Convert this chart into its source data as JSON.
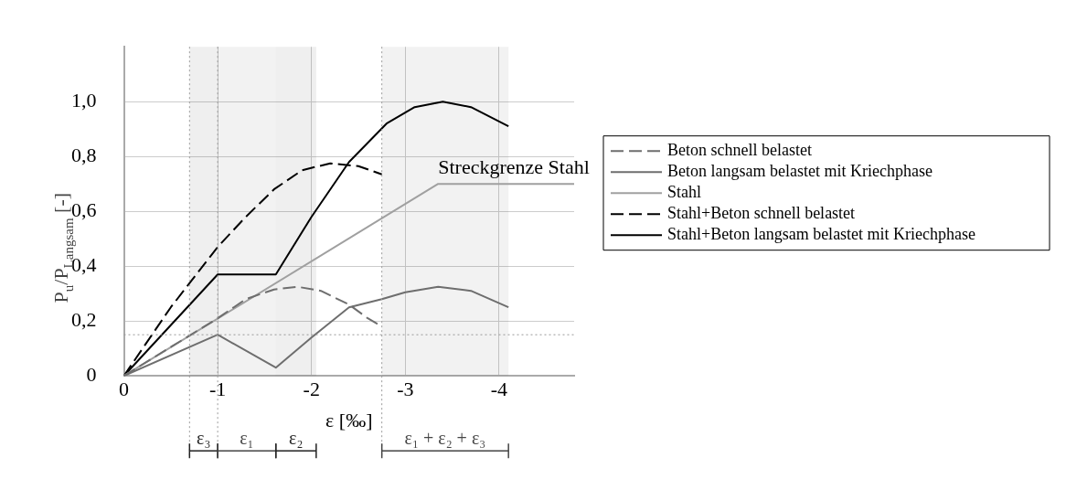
{
  "chart_data": {
    "type": "line",
    "xlabel": "ε [‰]",
    "ylabel": "P$_{u}$/P$_{Langsam}$ [-]",
    "xlim": [
      0,
      -4.8
    ],
    "xticks": [
      0,
      -1,
      -2,
      -3,
      -4
    ],
    "ylim": [
      0,
      1.2
    ],
    "yticks": [
      0,
      {
        "value": 0.2,
        "label": "0,2"
      },
      {
        "value": 0.4,
        "label": "0,4"
      },
      {
        "value": 0.6,
        "label": "0,6"
      },
      {
        "value": 0.8,
        "label": "0,8"
      },
      {
        "value": 1,
        "label": "1,0"
      }
    ],
    "grid": true,
    "legend": "right",
    "marker": "none",
    "series": [
      {
        "name": "Beton schnell belastet",
        "color": "#6e6e6e",
        "line_style": "dashed",
        "x": [
          0,
          -0.5,
          -1,
          -1.3,
          -1.6,
          -1.85,
          -2.1,
          -2.4,
          -2.6,
          -2.75
        ],
        "values": [
          0,
          0.105,
          0.21,
          0.28,
          0.315,
          0.325,
          0.31,
          0.26,
          0.21,
          0.18
        ]
      },
      {
        "name": "Beton langsam belastet mit Kriechphase",
        "color": "#6e6e6e",
        "line_style": "solid",
        "x": [
          0,
          -1,
          -1.62,
          -2,
          -2.4,
          -2.75,
          -3,
          -3.35,
          -3.7,
          -4.1
        ],
        "values": [
          0,
          0.15,
          0.03,
          0.14,
          0.25,
          0.28,
          0.305,
          0.325,
          0.31,
          0.25
        ]
      },
      {
        "name": "Stahl",
        "color": "#a0a0a0",
        "line_style": "solid",
        "x": [
          0,
          -3.35,
          -4.8
        ],
        "values": [
          0,
          0.7,
          0.7
        ]
      },
      {
        "name": "Stahl+Beton schnell belastet",
        "color": "#000000",
        "line_style": "dashed",
        "x": [
          0,
          -0.5,
          -1,
          -1.3,
          -1.6,
          -1.9,
          -2.2,
          -2.5,
          -2.75
        ],
        "values": [
          0,
          0.25,
          0.47,
          0.58,
          0.68,
          0.75,
          0.775,
          0.765,
          0.735
        ]
      },
      {
        "name": "Stahl+Beton langsam belastet mit Kriechphase",
        "color": "#000000",
        "line_style": "solid",
        "x": [
          0,
          -1,
          -1.62,
          -2,
          -2.4,
          -2.8,
          -3.1,
          -3.4,
          -3.7,
          -4.1
        ],
        "values": [
          0,
          0.37,
          0.37,
          0.58,
          0.78,
          0.92,
          0.98,
          1,
          0.98,
          0.91
        ]
      }
    ],
    "annotations": [
      {
        "text": "Streckgrenze Stahl",
        "x": -3.35,
        "y": 0.7
      }
    ],
    "ref_lines": [
      {
        "axis": "x",
        "value": -0.7,
        "color": "#999999",
        "line_style": "dotted"
      },
      {
        "axis": "x",
        "value": -1,
        "color": "#999999",
        "line_style": "dotted"
      },
      {
        "axis": "x",
        "value": -2.75,
        "color": "#999999",
        "line_style": "dotted"
      },
      {
        "axis": "y",
        "value": 0.15,
        "color": "#999999",
        "line_style": "dotted"
      }
    ],
    "bands": [
      {
        "axis": "x",
        "from": -0.7,
        "to": -1,
        "label": "ε₃",
        "color": "#222222"
      },
      {
        "axis": "x",
        "from": -1,
        "to": -1.62,
        "label": "ε₁",
        "color": "#444444"
      },
      {
        "axis": "x",
        "from": -1.62,
        "to": -2.05,
        "label": "ε₂",
        "color": "#222222"
      },
      {
        "axis": "x",
        "from": -2.75,
        "to": -4.1,
        "label": "ε₁ + ε₂ + ε₃",
        "color": "#444444"
      }
    ]
  }
}
